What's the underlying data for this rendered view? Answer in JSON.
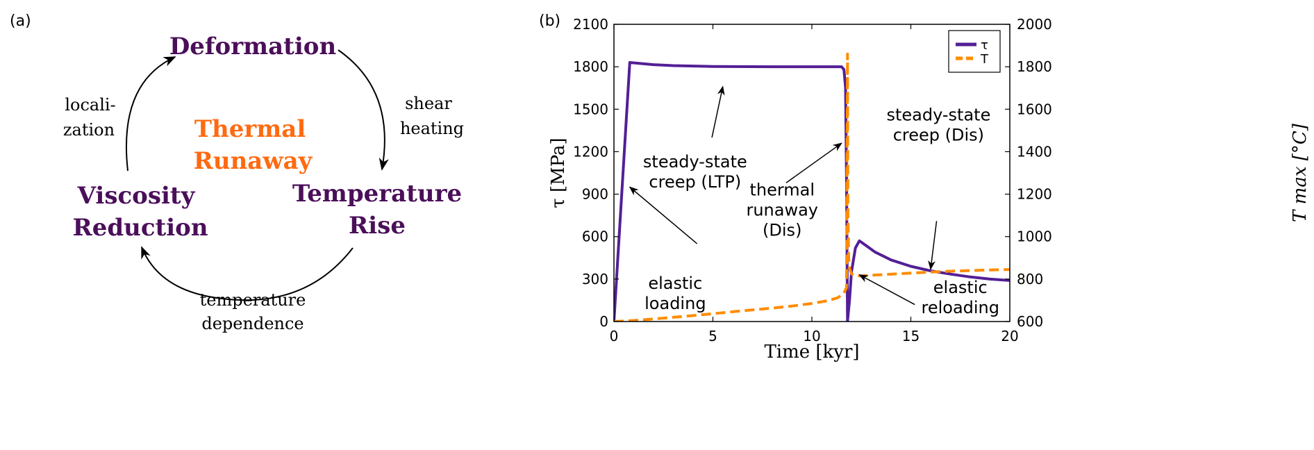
{
  "panel_a": {
    "label": "(a)",
    "center": [
      "Thermal",
      "Runaway"
    ],
    "nodes": {
      "deformation": [
        "Deformation"
      ],
      "temperature_rise": [
        "Temperature",
        "Rise"
      ],
      "viscosity_reduction": [
        "Viscosity",
        "Reduction"
      ]
    },
    "edges": {
      "shear_heating": [
        "shear",
        "heating"
      ],
      "temperature_dependence": [
        "temperature",
        "dependence"
      ],
      "localization": [
        "locali-",
        "zation"
      ]
    },
    "colors": {
      "node": "#4b0f5a",
      "center": "#ff6a10"
    }
  },
  "chart_data": {
    "panel_label": "(b)",
    "type": "line",
    "xlabel": "Time [kyr]",
    "ylabel": "τ [MPa]",
    "y2label": "T max [°C]",
    "xlim": [
      0,
      20
    ],
    "ylim": [
      0,
      2100
    ],
    "y2lim": [
      600,
      2000
    ],
    "xticks": [
      0,
      5,
      10,
      15,
      20
    ],
    "yticks": [
      0,
      300,
      600,
      900,
      1200,
      1500,
      1800,
      2100
    ],
    "y2ticks": [
      600,
      800,
      1000,
      1200,
      1400,
      1600,
      1800,
      2000
    ],
    "grid": false,
    "legend": {
      "placement": "top-right",
      "entries": [
        "τ",
        "T"
      ]
    },
    "series": [
      {
        "name": "τ",
        "axis": "left",
        "color": "#531f96",
        "style": "solid",
        "x": [
          0,
          0.8,
          2,
          3,
          5,
          8,
          11.5,
          11.62,
          11.7,
          11.75,
          11.8,
          11.9,
          12.0,
          12.2,
          12.4,
          12.7,
          13.2,
          14,
          15,
          16,
          17,
          18,
          19,
          20
        ],
        "y": [
          0,
          1830,
          1815,
          1808,
          1802,
          1800,
          1800,
          1780,
          1650,
          1000,
          0,
          150,
          350,
          520,
          570,
          540,
          490,
          435,
          390,
          358,
          335,
          315,
          300,
          290
        ]
      },
      {
        "name": "T",
        "axis": "right",
        "color": "#ff8c00",
        "style": "dashed",
        "x": [
          0,
          1,
          2,
          3,
          4,
          5,
          6,
          7,
          8,
          9,
          10,
          10.8,
          11.3,
          11.6,
          11.75,
          11.8,
          11.82,
          11.86,
          11.9,
          12.0,
          12.2,
          12.5,
          13,
          14,
          15,
          16,
          17,
          18,
          19,
          20
        ],
        "y": [
          600,
          605,
          612,
          620,
          628,
          637,
          646,
          655,
          663,
          673,
          685,
          698,
          712,
          730,
          760,
          1860,
          1100,
          900,
          850,
          825,
          815,
          815,
          818,
          823,
          828,
          833,
          837,
          840,
          843,
          845
        ]
      }
    ],
    "annotations": [
      {
        "lines": [
          "steady-state",
          "creep (LTP)"
        ],
        "x": 4.1,
        "y": 1090,
        "arrow_to": [
          5.5,
          1660
        ],
        "arrow_from": [
          4.95,
          1300
        ]
      },
      {
        "lines": [
          "thermal",
          "runaway",
          "(Dis)"
        ],
        "x": 8.5,
        "y": 890,
        "arrow_to": [
          11.5,
          1260
        ],
        "arrow_from": [
          8.7,
          980
        ]
      },
      {
        "lines": [
          "elastic",
          "loading"
        ],
        "x": 3.1,
        "y": 230,
        "arrow_to": [
          0.8,
          950
        ],
        "arrow_from": [
          4.2,
          550
        ]
      },
      {
        "lines": [
          "steady-state",
          "creep (Dis)"
        ],
        "x": 16.4,
        "y": 1420,
        "arrow_to": [
          16.0,
          370
        ],
        "arrow_from": [
          16.3,
          710
        ]
      },
      {
        "lines": [
          "elastic",
          "reloading"
        ],
        "x": 17.5,
        "y": -30,
        "arrow_to": [
          12.4,
          330
        ],
        "arrow_from": [
          15.2,
          120
        ]
      }
    ]
  }
}
